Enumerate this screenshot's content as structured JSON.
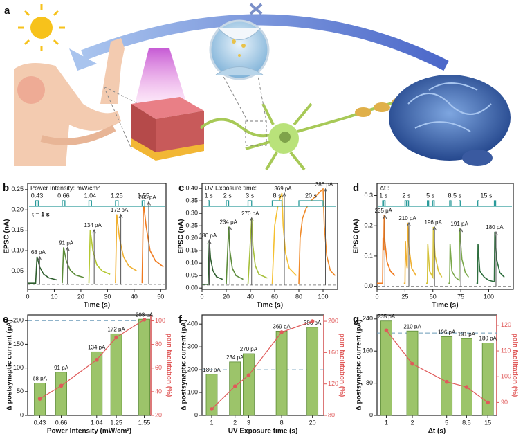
{
  "illustration": {
    "panel": "a"
  },
  "chart_data": [
    {
      "type": "line",
      "panel": "b",
      "xlabel": "Time (s)",
      "ylabel": "EPSC (nA)",
      "xlim": [
        0,
        52
      ],
      "xticks": [
        0,
        10,
        20,
        30,
        40,
        50
      ],
      "ylim": [
        0.005,
        0.265
      ],
      "yticks": [
        0.05,
        {
          "value": 0.1,
          "label": "0.10"
        },
        0.15,
        {
          "value": 0.2,
          "label": "0.20"
        },
        0.25
      ],
      "note": "t = 1 s",
      "baseline": 0.017,
      "stimulus": {
        "title": "Power Intensity: mW/cm²",
        "x": [
          3,
          13,
          23,
          33,
          43
        ],
        "width": [
          1,
          1,
          1,
          1,
          1
        ],
        "labels": [
          "0.43",
          "0.66",
          "1.04",
          "1.25",
          "1.55"
        ]
      },
      "peaks": {
        "x": [
          4.5,
          15,
          25,
          35,
          45.5
        ],
        "values": [
          0.068,
          0.091,
          0.134,
          0.172,
          0.203
        ],
        "value_labels": [
          "68 pA",
          "91 pA",
          "134 pA",
          "172 pA",
          "203 pA"
        ]
      },
      "series": [
        {
          "color": "#2e5e2e",
          "x": [
            0,
            3,
            3.5,
            4.5,
            6,
            8,
            11
          ],
          "values": [
            0.02,
            0.02,
            0.085,
            0.06,
            0.042,
            0.033,
            0.028
          ]
        },
        {
          "color": "#5c8c3a",
          "x": [
            13,
            13.5,
            14.5,
            16,
            18,
            21
          ],
          "values": [
            0.02,
            0.108,
            0.075,
            0.052,
            0.04,
            0.034
          ]
        },
        {
          "color": "#b5c832",
          "x": [
            23,
            23.5,
            24.5,
            26,
            28,
            31
          ],
          "values": [
            0.02,
            0.151,
            0.1,
            0.065,
            0.05,
            0.042
          ]
        },
        {
          "color": "#f0b030",
          "x": [
            33,
            33.5,
            34.5,
            36,
            38,
            41
          ],
          "values": [
            0.02,
            0.189,
            0.13,
            0.085,
            0.062,
            0.05
          ]
        },
        {
          "color": "#f07a1e",
          "x": [
            43,
            43.5,
            44.5,
            46,
            48,
            51
          ],
          "values": [
            0.02,
            0.22,
            0.16,
            0.1,
            0.075,
            0.06
          ]
        }
      ]
    },
    {
      "type": "line",
      "panel": "c",
      "xlabel": "Time (s)",
      "ylabel": "EPSC (nA)",
      "xlim": [
        0,
        112
      ],
      "xticks": [
        0,
        20,
        40,
        60,
        80,
        100
      ],
      "ylim": [
        -0.005,
        0.42
      ],
      "yticks": [
        {
          "value": 0,
          "label": "0.00"
        },
        0.05,
        {
          "value": 0.1,
          "label": "0.10"
        },
        0.15,
        {
          "value": 0.2,
          "label": "0.20"
        },
        0.25,
        {
          "value": 0.3,
          "label": "0.30"
        },
        0.35,
        {
          "value": 0.4,
          "label": "0.40"
        }
      ],
      "baseline": 0.012,
      "stimulus": {
        "title": "UV Exposure time:",
        "x": [
          5,
          20,
          38,
          58,
          80
        ],
        "width": [
          1,
          2,
          3,
          8,
          20
        ],
        "labels": [
          "1 s",
          "2 s",
          "3 s",
          "8 s",
          "20 s"
        ]
      },
      "peaks": {
        "x": [
          6,
          23,
          41,
          68,
          102
        ],
        "values": [
          0.18,
          0.234,
          0.27,
          0.369,
          0.386
        ],
        "value_labels": [
          "180 pA",
          "234 pA",
          "270 pA",
          "369 pA",
          "386 pA"
        ]
      },
      "series": [
        {
          "color": "#2e5e2e",
          "x": [
            0,
            5,
            6,
            7,
            9,
            12,
            17
          ],
          "values": [
            0.015,
            0.015,
            0.192,
            0.12,
            0.07,
            0.045,
            0.035
          ]
        },
        {
          "color": "#5c8c3a",
          "x": [
            20,
            22,
            23,
            25,
            28,
            34
          ],
          "values": [
            0.015,
            0.246,
            0.15,
            0.08,
            0.05,
            0.035
          ]
        },
        {
          "color": "#a6c03a",
          "x": [
            38,
            41,
            42,
            44,
            47,
            54
          ],
          "values": [
            0.015,
            0.282,
            0.17,
            0.09,
            0.055,
            0.04
          ]
        },
        {
          "color": "#f5c030",
          "x": [
            58,
            60,
            63,
            66,
            67,
            69,
            72,
            78
          ],
          "values": [
            0.015,
            0.25,
            0.34,
            0.381,
            0.25,
            0.14,
            0.08,
            0.05
          ]
        },
        {
          "color": "#f08a2a",
          "x": [
            80,
            81,
            83,
            86,
            90,
            95,
            100,
            101,
            103,
            106,
            110
          ],
          "values": [
            0.015,
            0.2,
            0.28,
            0.32,
            0.35,
            0.375,
            0.398,
            0.25,
            0.13,
            0.07,
            0.05
          ]
        }
      ]
    },
    {
      "type": "line",
      "panel": "d",
      "xlabel": "Time (s)",
      "ylabel": "EPSC (nA)",
      "xlim": [
        0,
        122
      ],
      "xticks": [
        0,
        25,
        50,
        75,
        100
      ],
      "ylim": [
        -0.01,
        0.34
      ],
      "yticks": [
        {
          "value": 0,
          "label": "0.0"
        },
        0.1,
        0.2,
        0.3
      ],
      "baseline": 0,
      "stimulus": {
        "title": "Δt :",
        "x": [
          5,
          6,
          25,
          27,
          45,
          50,
          65,
          73.5,
          90,
          105
        ],
        "width": [
          0.5,
          0.5,
          0.5,
          0.5,
          0.5,
          0.5,
          0.5,
          0.5,
          0.5,
          0.5
        ],
        "labels": [
          "1 s",
          "2 s",
          "5 s",
          "8.5 s",
          "15 s"
        ]
      },
      "peaks": {
        "x": [
          7,
          28.5,
          51.5,
          75,
          106.5
        ],
        "values": [
          0.235,
          0.21,
          0.196,
          0.191,
          0.18
        ],
        "value_labels": [
          "235 pA",
          "210 pA",
          "196 pA",
          "191 pA",
          "180 pA"
        ]
      },
      "series": [
        {
          "color": "#f07a1e",
          "x": [
            0,
            5,
            5.4,
            6,
            6.4,
            7,
            9,
            12,
            16
          ],
          "values": [
            0.01,
            0.01,
            0.16,
            0.12,
            0.235,
            0.15,
            0.08,
            0.05,
            0.035
          ]
        },
        {
          "color": "#f0b030",
          "x": [
            24,
            25,
            25.4,
            26.5,
            27,
            27.4,
            28.5,
            31,
            35
          ],
          "values": [
            0.01,
            0.01,
            0.15,
            0.07,
            0.06,
            0.21,
            0.13,
            0.06,
            0.035
          ]
        },
        {
          "color": "#d5c23a",
          "x": [
            44,
            45,
            45.4,
            47,
            50,
            50.4,
            52,
            55,
            58
          ],
          "values": [
            0.01,
            0.01,
            0.14,
            0.05,
            0.03,
            0.196,
            0.1,
            0.05,
            0.03
          ]
        },
        {
          "color": "#7aa84a",
          "x": [
            64,
            65,
            65.4,
            67,
            70,
            73.5,
            73.9,
            76,
            79,
            82
          ],
          "values": [
            0.01,
            0.01,
            0.14,
            0.05,
            0.03,
            0.02,
            0.191,
            0.09,
            0.045,
            0.03
          ]
        },
        {
          "color": "#2e6e3e",
          "x": [
            89,
            90,
            90.4,
            92,
            96,
            100,
            105,
            105.4,
            107,
            110,
            114
          ],
          "values": [
            0.01,
            0.01,
            0.14,
            0.05,
            0.03,
            0.02,
            0.015,
            0.18,
            0.09,
            0.045,
            0.03
          ]
        }
      ]
    },
    {
      "type": "bar",
      "panel": "e",
      "xlabel": "Power Intensity (mW/cm²)",
      "ylabel": "Δ postsynaptic current (pA)",
      "y2label": "pain facilitation (%)",
      "x": [
        0.43,
        0.66,
        1.04,
        1.25,
        1.55
      ],
      "xlim": [
        0.3,
        1.62
      ],
      "xticks": [
        0.43,
        0.66,
        1.04,
        1.25,
        1.55
      ],
      "ylim": [
        0,
        212
      ],
      "yticks": [
        0,
        50,
        100,
        150,
        200
      ],
      "y2lim": [
        20,
        105
      ],
      "y2ticks": [
        20,
        40,
        60,
        80,
        100
      ],
      "hline": 200,
      "series": [
        {
          "type": "bar",
          "color": "#9cc46a",
          "values": [
            68,
            91,
            134,
            172,
            203
          ],
          "value_labels": [
            "68 pA",
            "91 pA",
            "134 pA",
            "172 pA",
            "203 pA"
          ]
        },
        {
          "type": "line",
          "axis": "y2",
          "color": "#e05a5a",
          "values": [
            34,
            45,
            67,
            86,
            101
          ]
        }
      ]
    },
    {
      "type": "bar",
      "panel": "f",
      "xlabel": "UV Exposure time (s)",
      "ylabel": "Δ postsynaptic current (pA)",
      "y2label": "pain facilitation (%)",
      "xscale": "log",
      "x": [
        1,
        2,
        3,
        8,
        20
      ],
      "xlim": [
        0.75,
        28
      ],
      "xticks": [
        1,
        2,
        3,
        8,
        20
      ],
      "ylim": [
        0,
        440
      ],
      "yticks": [
        0,
        100,
        200,
        300,
        400
      ],
      "y2lim": [
        80,
        208
      ],
      "y2ticks": [
        80,
        120,
        160,
        200
      ],
      "hline": 200,
      "series": [
        {
          "type": "bar",
          "color": "#9cc46a",
          "values": [
            180,
            234,
            270,
            369,
            386
          ],
          "value_labels": [
            "180 pA",
            "234 pA",
            "270 pA",
            "369 pA",
            "386 pA"
          ]
        },
        {
          "type": "line",
          "axis": "y2",
          "color": "#e05a5a",
          "values": [
            88,
            117,
            131,
            186,
            200
          ]
        }
      ]
    },
    {
      "type": "bar",
      "panel": "g",
      "xlabel": "Δt (s)",
      "ylabel": "Δ postsynaptic current (pA)",
      "y2label": "pain facilitation (%)",
      "xscale": "log",
      "x": [
        1,
        2,
        5,
        8.5,
        15
      ],
      "xlim": [
        0.78,
        19
      ],
      "xticks": [
        1,
        2,
        5,
        8.5,
        15
      ],
      "ylim": [
        0,
        250
      ],
      "yticks": [
        0,
        80,
        160,
        240
      ],
      "y2lim": [
        85,
        124
      ],
      "y2ticks": [
        90,
        100,
        110,
        120
      ],
      "hline": 205,
      "series": [
        {
          "type": "bar",
          "color": "#9cc46a",
          "values": [
            235,
            210,
            196,
            191,
            180
          ],
          "value_labels": [
            "235 pA",
            "210 pA",
            "196 pA",
            "191 pA",
            "180 pA"
          ]
        },
        {
          "type": "line",
          "axis": "y2",
          "color": "#e05a5a",
          "values": [
            118,
            105,
            98,
            96,
            90
          ]
        }
      ]
    }
  ]
}
